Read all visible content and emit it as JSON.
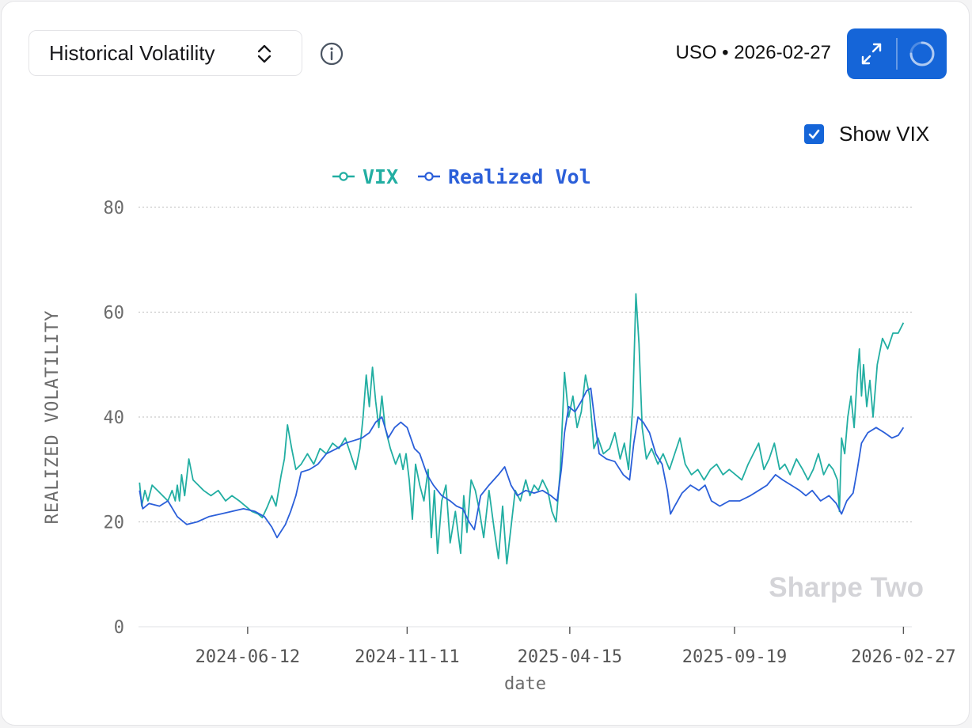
{
  "metric_select": {
    "selected": "Historical Volatility"
  },
  "header": {
    "ticker_label": "USO • 2026-02-27"
  },
  "controls": {
    "show_vix_label": "Show VIX",
    "show_vix_checked": true
  },
  "watermark": "Sharpe Two",
  "colors": {
    "vix": "#22aea2",
    "realized": "#2b5fd9",
    "accent": "#1565d8",
    "grid": "#c9c9c9",
    "axis_text": "#6b6b6b"
  },
  "chart_data": {
    "type": "line",
    "title": "",
    "xlabel": "date",
    "ylabel": "REALIZED VOLATILITY",
    "ylim": [
      0,
      80
    ],
    "yticks": [
      0,
      20,
      40,
      60,
      80
    ],
    "grid": true,
    "legend_position": "top-center",
    "x_domain": [
      "2024-02-29",
      "2026-03-07"
    ],
    "x_ticks": [
      "2024-06-12",
      "2024-11-11",
      "2025-04-15",
      "2025-09-19",
      "2026-02-27"
    ],
    "series": [
      {
        "name": "VIX",
        "color": "#22aea2",
        "points": [
          [
            "2024-03-01",
            27.5
          ],
          [
            "2024-03-03",
            23
          ],
          [
            "2024-03-06",
            26
          ],
          [
            "2024-03-09",
            24
          ],
          [
            "2024-03-13",
            27
          ],
          [
            "2024-03-18",
            26
          ],
          [
            "2024-03-23",
            25
          ],
          [
            "2024-03-28",
            24
          ],
          [
            "2024-04-01",
            26
          ],
          [
            "2024-04-04",
            24
          ],
          [
            "2024-04-06",
            27
          ],
          [
            "2024-04-08",
            24
          ],
          [
            "2024-04-10",
            29
          ],
          [
            "2024-04-13",
            25
          ],
          [
            "2024-04-17",
            32
          ],
          [
            "2024-04-21",
            28
          ],
          [
            "2024-04-26",
            27
          ],
          [
            "2024-05-01",
            26
          ],
          [
            "2024-05-08",
            25
          ],
          [
            "2024-05-15",
            26
          ],
          [
            "2024-05-22",
            24
          ],
          [
            "2024-05-28",
            25
          ],
          [
            "2024-06-04",
            24
          ],
          [
            "2024-06-10",
            23
          ],
          [
            "2024-06-16",
            22
          ],
          [
            "2024-06-22",
            21.5
          ],
          [
            "2024-06-26",
            20.8
          ],
          [
            "2024-07-01",
            23
          ],
          [
            "2024-07-05",
            25
          ],
          [
            "2024-07-09",
            23
          ],
          [
            "2024-07-14",
            29
          ],
          [
            "2024-07-17",
            32
          ],
          [
            "2024-07-20",
            38.5
          ],
          [
            "2024-07-24",
            34
          ],
          [
            "2024-07-28",
            30
          ],
          [
            "2024-08-02",
            31
          ],
          [
            "2024-08-08",
            33
          ],
          [
            "2024-08-14",
            31
          ],
          [
            "2024-08-20",
            34
          ],
          [
            "2024-08-26",
            33
          ],
          [
            "2024-09-01",
            35
          ],
          [
            "2024-09-07",
            34
          ],
          [
            "2024-09-13",
            36
          ],
          [
            "2024-09-18",
            33
          ],
          [
            "2024-09-23",
            30
          ],
          [
            "2024-09-27",
            34
          ],
          [
            "2024-09-30",
            40
          ],
          [
            "2024-10-03",
            48
          ],
          [
            "2024-10-06",
            42
          ],
          [
            "2024-10-09",
            49.5
          ],
          [
            "2024-10-12",
            43
          ],
          [
            "2024-10-15",
            38
          ],
          [
            "2024-10-18",
            44
          ],
          [
            "2024-10-21",
            38
          ],
          [
            "2024-10-26",
            34
          ],
          [
            "2024-10-31",
            31
          ],
          [
            "2024-11-04",
            33
          ],
          [
            "2024-11-07",
            30
          ],
          [
            "2024-11-10",
            33
          ],
          [
            "2024-11-13",
            28
          ],
          [
            "2024-11-16",
            20.5
          ],
          [
            "2024-11-19",
            31
          ],
          [
            "2024-11-23",
            27
          ],
          [
            "2024-11-27",
            24
          ],
          [
            "2024-12-01",
            30
          ],
          [
            "2024-12-04",
            17
          ],
          [
            "2024-12-07",
            26
          ],
          [
            "2024-12-10",
            14
          ],
          [
            "2024-12-14",
            24
          ],
          [
            "2024-12-18",
            27
          ],
          [
            "2024-12-22",
            16
          ],
          [
            "2024-12-27",
            22
          ],
          [
            "2025-01-01",
            14
          ],
          [
            "2025-01-04",
            25
          ],
          [
            "2025-01-07",
            18
          ],
          [
            "2025-01-11",
            28
          ],
          [
            "2025-01-15",
            26
          ],
          [
            "2025-01-19",
            22
          ],
          [
            "2025-01-23",
            17
          ],
          [
            "2025-01-28",
            26
          ],
          [
            "2025-02-02",
            18.5
          ],
          [
            "2025-02-06",
            13
          ],
          [
            "2025-02-10",
            23
          ],
          [
            "2025-02-14",
            12
          ],
          [
            "2025-02-18",
            19
          ],
          [
            "2025-02-22",
            26
          ],
          [
            "2025-02-27",
            24
          ],
          [
            "2025-03-04",
            28
          ],
          [
            "2025-03-08",
            25
          ],
          [
            "2025-03-12",
            27
          ],
          [
            "2025-03-16",
            26
          ],
          [
            "2025-03-20",
            28
          ],
          [
            "2025-03-25",
            26
          ],
          [
            "2025-03-29",
            22
          ],
          [
            "2025-04-02",
            20
          ],
          [
            "2025-04-06",
            30
          ],
          [
            "2025-04-10",
            48.5
          ],
          [
            "2025-04-14",
            40
          ],
          [
            "2025-04-18",
            44
          ],
          [
            "2025-04-22",
            38
          ],
          [
            "2025-04-26",
            41
          ],
          [
            "2025-04-30",
            48
          ],
          [
            "2025-05-04",
            44
          ],
          [
            "2025-05-08",
            34
          ],
          [
            "2025-05-12",
            36
          ],
          [
            "2025-05-17",
            33
          ],
          [
            "2025-05-23",
            34
          ],
          [
            "2025-05-28",
            37
          ],
          [
            "2025-06-02",
            32
          ],
          [
            "2025-06-06",
            35
          ],
          [
            "2025-06-10",
            30
          ],
          [
            "2025-06-14",
            42
          ],
          [
            "2025-06-17",
            63.5
          ],
          [
            "2025-06-20",
            54
          ],
          [
            "2025-06-23",
            38
          ],
          [
            "2025-06-27",
            32
          ],
          [
            "2025-07-02",
            34
          ],
          [
            "2025-07-08",
            31
          ],
          [
            "2025-07-13",
            33
          ],
          [
            "2025-07-19",
            30
          ],
          [
            "2025-07-24",
            33
          ],
          [
            "2025-07-29",
            36
          ],
          [
            "2025-08-03",
            31
          ],
          [
            "2025-08-09",
            29
          ],
          [
            "2025-08-15",
            30
          ],
          [
            "2025-08-21",
            28
          ],
          [
            "2025-08-27",
            30
          ],
          [
            "2025-09-02",
            31
          ],
          [
            "2025-09-08",
            29
          ],
          [
            "2025-09-14",
            30
          ],
          [
            "2025-09-20",
            29
          ],
          [
            "2025-09-26",
            28
          ],
          [
            "2025-10-02",
            31
          ],
          [
            "2025-10-07",
            33
          ],
          [
            "2025-10-12",
            35
          ],
          [
            "2025-10-17",
            30
          ],
          [
            "2025-10-22",
            32
          ],
          [
            "2025-10-27",
            35
          ],
          [
            "2025-11-01",
            30
          ],
          [
            "2025-11-06",
            31
          ],
          [
            "2025-11-11",
            29
          ],
          [
            "2025-11-17",
            32
          ],
          [
            "2025-11-23",
            30
          ],
          [
            "2025-11-28",
            28
          ],
          [
            "2025-12-03",
            30
          ],
          [
            "2025-12-08",
            33
          ],
          [
            "2025-12-13",
            29
          ],
          [
            "2025-12-18",
            31
          ],
          [
            "2025-12-22",
            30
          ],
          [
            "2025-12-26",
            28
          ],
          [
            "2025-12-28",
            22
          ],
          [
            "2025-12-30",
            36
          ],
          [
            "2026-01-02",
            33
          ],
          [
            "2026-01-05",
            40
          ],
          [
            "2026-01-08",
            44
          ],
          [
            "2026-01-11",
            38
          ],
          [
            "2026-01-14",
            48
          ],
          [
            "2026-01-16",
            53
          ],
          [
            "2026-01-18",
            44
          ],
          [
            "2026-01-20",
            50
          ],
          [
            "2026-01-23",
            42
          ],
          [
            "2026-01-26",
            47
          ],
          [
            "2026-01-29",
            40
          ],
          [
            "2026-02-02",
            50
          ],
          [
            "2026-02-07",
            55
          ],
          [
            "2026-02-12",
            53
          ],
          [
            "2026-02-17",
            56
          ],
          [
            "2026-02-22",
            56
          ],
          [
            "2026-02-27",
            58
          ]
        ]
      },
      {
        "name": "Realized Vol",
        "color": "#2b5fd9",
        "points": [
          [
            "2024-03-01",
            26
          ],
          [
            "2024-03-04",
            22.5
          ],
          [
            "2024-03-10",
            23.5
          ],
          [
            "2024-03-20",
            23
          ],
          [
            "2024-03-28",
            24
          ],
          [
            "2024-04-06",
            21
          ],
          [
            "2024-04-15",
            19.5
          ],
          [
            "2024-04-25",
            20
          ],
          [
            "2024-05-06",
            21
          ],
          [
            "2024-05-17",
            21.5
          ],
          [
            "2024-05-28",
            22
          ],
          [
            "2024-06-08",
            22.5
          ],
          [
            "2024-06-19",
            22
          ],
          [
            "2024-06-28",
            21
          ],
          [
            "2024-07-05",
            19
          ],
          [
            "2024-07-10",
            17
          ],
          [
            "2024-07-18",
            19.5
          ],
          [
            "2024-07-23",
            22
          ],
          [
            "2024-07-28",
            25
          ],
          [
            "2024-08-02",
            29.5
          ],
          [
            "2024-08-10",
            30
          ],
          [
            "2024-08-18",
            31
          ],
          [
            "2024-08-26",
            33
          ],
          [
            "2024-09-05",
            34
          ],
          [
            "2024-09-13",
            35
          ],
          [
            "2024-09-21",
            35.5
          ],
          [
            "2024-09-29",
            36
          ],
          [
            "2024-10-06",
            37
          ],
          [
            "2024-10-12",
            39
          ],
          [
            "2024-10-18",
            40
          ],
          [
            "2024-10-24",
            36
          ],
          [
            "2024-10-30",
            38
          ],
          [
            "2024-11-05",
            39
          ],
          [
            "2024-11-11",
            38
          ],
          [
            "2024-11-18",
            34
          ],
          [
            "2024-11-23",
            33
          ],
          [
            "2024-11-30",
            29
          ],
          [
            "2024-12-06",
            27
          ],
          [
            "2024-12-14",
            25
          ],
          [
            "2024-12-22",
            24
          ],
          [
            "2024-12-28",
            23
          ],
          [
            "2025-01-03",
            22.5
          ],
          [
            "2025-01-09",
            20
          ],
          [
            "2025-01-14",
            18.5
          ],
          [
            "2025-01-20",
            25
          ],
          [
            "2025-01-28",
            27
          ],
          [
            "2025-02-06",
            29
          ],
          [
            "2025-02-12",
            30.5
          ],
          [
            "2025-02-18",
            27
          ],
          [
            "2025-02-24",
            25
          ],
          [
            "2025-03-04",
            26
          ],
          [
            "2025-03-12",
            25.5
          ],
          [
            "2025-03-20",
            26
          ],
          [
            "2025-03-28",
            25
          ],
          [
            "2025-04-03",
            24
          ],
          [
            "2025-04-07",
            30
          ],
          [
            "2025-04-10",
            37
          ],
          [
            "2025-04-14",
            42
          ],
          [
            "2025-04-20",
            41
          ],
          [
            "2025-04-26",
            43
          ],
          [
            "2025-05-01",
            45
          ],
          [
            "2025-05-05",
            45.5
          ],
          [
            "2025-05-09",
            39
          ],
          [
            "2025-05-13",
            33
          ],
          [
            "2025-05-20",
            32
          ],
          [
            "2025-05-28",
            31.5
          ],
          [
            "2025-06-05",
            29
          ],
          [
            "2025-06-11",
            28
          ],
          [
            "2025-06-15",
            35
          ],
          [
            "2025-06-19",
            40
          ],
          [
            "2025-06-24",
            39
          ],
          [
            "2025-06-30",
            37
          ],
          [
            "2025-07-06",
            33
          ],
          [
            "2025-07-12",
            31
          ],
          [
            "2025-07-17",
            26
          ],
          [
            "2025-07-20",
            21.5
          ],
          [
            "2025-07-24",
            23
          ],
          [
            "2025-07-31",
            25.5
          ],
          [
            "2025-08-08",
            27
          ],
          [
            "2025-08-16",
            26
          ],
          [
            "2025-08-22",
            27
          ],
          [
            "2025-08-28",
            24
          ],
          [
            "2025-09-05",
            23
          ],
          [
            "2025-09-14",
            24
          ],
          [
            "2025-09-24",
            24
          ],
          [
            "2025-10-04",
            25
          ],
          [
            "2025-10-12",
            26
          ],
          [
            "2025-10-20",
            27
          ],
          [
            "2025-10-28",
            29
          ],
          [
            "2025-11-04",
            28
          ],
          [
            "2025-11-12",
            27
          ],
          [
            "2025-11-20",
            26
          ],
          [
            "2025-11-26",
            25
          ],
          [
            "2025-12-02",
            26
          ],
          [
            "2025-12-10",
            24
          ],
          [
            "2025-12-18",
            25
          ],
          [
            "2025-12-25",
            23.5
          ],
          [
            "2025-12-30",
            21.5
          ],
          [
            "2026-01-04",
            24
          ],
          [
            "2026-01-10",
            25.5
          ],
          [
            "2026-01-14",
            30
          ],
          [
            "2026-01-18",
            35
          ],
          [
            "2026-01-24",
            37
          ],
          [
            "2026-02-01",
            38
          ],
          [
            "2026-02-09",
            37
          ],
          [
            "2026-02-16",
            36
          ],
          [
            "2026-02-22",
            36.5
          ],
          [
            "2026-02-27",
            38
          ]
        ]
      }
    ]
  }
}
